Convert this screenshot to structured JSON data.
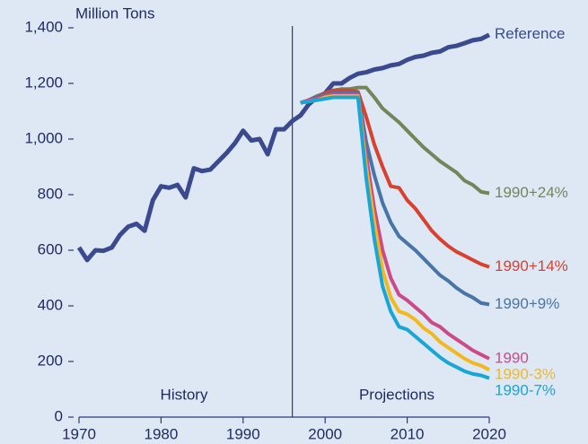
{
  "chart_data": {
    "type": "line",
    "y_axis_label": "Million Tons",
    "annotations": [
      "History",
      "Projections"
    ],
    "projection_start": 1996,
    "x": [
      1970,
      1971,
      1972,
      1973,
      1974,
      1975,
      1976,
      1977,
      1978,
      1979,
      1980,
      1981,
      1982,
      1983,
      1984,
      1985,
      1986,
      1987,
      1988,
      1989,
      1990,
      1991,
      1992,
      1993,
      1994,
      1995,
      1996,
      1997,
      1998,
      1999,
      2000,
      2001,
      2002,
      2003,
      2004,
      2005,
      2006,
      2007,
      2008,
      2009,
      2010,
      2011,
      2012,
      2013,
      2014,
      2015,
      2016,
      2017,
      2018,
      2019,
      2020
    ],
    "xlim": [
      1970,
      2020
    ],
    "xticks": [
      1970,
      1980,
      1990,
      2000,
      2010,
      2020
    ],
    "ylim": [
      0,
      1400
    ],
    "yticks": [
      0,
      200,
      400,
      600,
      800,
      {
        "value": 1000,
        "label": "1,000"
      },
      {
        "value": 1200,
        "label": "1,200"
      },
      {
        "value": 1400,
        "label": "1,400"
      }
    ],
    "series": [
      {
        "name": "Reference",
        "color": "#3b4a8f",
        "values": [
          610,
          565,
          600,
          598,
          610,
          655,
          685,
          695,
          670,
          780,
          830,
          825,
          835,
          790,
          895,
          885,
          890,
          920,
          950,
          985,
          1030,
          995,
          1000,
          945,
          1035,
          1035,
          1065,
          1085,
          1125,
          1150,
          1165,
          1200,
          1200,
          1220,
          1235,
          1240,
          1250,
          1255,
          1265,
          1270,
          1285,
          1295,
          1300,
          1310,
          1315,
          1330,
          1335,
          1345,
          1355,
          1360,
          1375
        ]
      },
      {
        "name": "1990+24%",
        "color": "#74855a",
        "values": [
          null,
          null,
          null,
          null,
          null,
          null,
          null,
          null,
          null,
          null,
          null,
          null,
          null,
          null,
          null,
          null,
          null,
          null,
          null,
          null,
          null,
          null,
          null,
          null,
          null,
          null,
          null,
          1130,
          1140,
          1155,
          1165,
          1175,
          1180,
          1180,
          1185,
          1185,
          1150,
          1110,
          1085,
          1060,
          1030,
          1000,
          970,
          945,
          920,
          900,
          880,
          850,
          835,
          810,
          805
        ]
      },
      {
        "name": "1990+14%",
        "color": "#d8402f",
        "values": [
          null,
          null,
          null,
          null,
          null,
          null,
          null,
          null,
          null,
          null,
          null,
          null,
          null,
          null,
          null,
          null,
          null,
          null,
          null,
          null,
          null,
          null,
          null,
          null,
          null,
          null,
          null,
          1130,
          1140,
          1150,
          1165,
          1175,
          1175,
          1175,
          1170,
          1080,
          980,
          900,
          830,
          825,
          780,
          750,
          710,
          670,
          640,
          615,
          595,
          580,
          565,
          550,
          540
        ]
      },
      {
        "name": "1990+9%",
        "color": "#4675a6",
        "values": [
          null,
          null,
          null,
          null,
          null,
          null,
          null,
          null,
          null,
          null,
          null,
          null,
          null,
          null,
          null,
          null,
          null,
          null,
          null,
          null,
          null,
          null,
          null,
          null,
          null,
          null,
          null,
          1130,
          1140,
          1150,
          1160,
          1165,
          1165,
          1165,
          1165,
          990,
          870,
          770,
          700,
          650,
          625,
          600,
          570,
          540,
          510,
          490,
          465,
          445,
          430,
          410,
          405
        ]
      },
      {
        "name": "1990",
        "color": "#cc4a88",
        "values": [
          null,
          null,
          null,
          null,
          null,
          null,
          null,
          null,
          null,
          null,
          null,
          null,
          null,
          null,
          null,
          null,
          null,
          null,
          null,
          null,
          null,
          null,
          null,
          null,
          null,
          null,
          null,
          1130,
          1140,
          1145,
          1155,
          1160,
          1160,
          1160,
          1160,
          940,
          750,
          600,
          500,
          440,
          420,
          395,
          370,
          340,
          325,
          300,
          280,
          260,
          240,
          225,
          210
        ]
      },
      {
        "name": "1990-3%",
        "color": "#f4b81e",
        "values": [
          null,
          null,
          null,
          null,
          null,
          null,
          null,
          null,
          null,
          null,
          null,
          null,
          null,
          null,
          null,
          null,
          null,
          null,
          null,
          null,
          null,
          null,
          null,
          null,
          null,
          null,
          null,
          1130,
          1135,
          1140,
          1150,
          1155,
          1155,
          1155,
          1155,
          900,
          700,
          530,
          430,
          380,
          370,
          350,
          320,
          300,
          270,
          250,
          230,
          210,
          195,
          185,
          170
        ]
      },
      {
        "name": "1990-7%",
        "color": "#17a6d6",
        "values": [
          null,
          null,
          null,
          null,
          null,
          null,
          null,
          null,
          null,
          null,
          null,
          null,
          null,
          null,
          null,
          null,
          null,
          null,
          null,
          null,
          null,
          null,
          null,
          null,
          null,
          null,
          null,
          1130,
          1135,
          1140,
          1145,
          1150,
          1150,
          1150,
          1150,
          860,
          640,
          470,
          380,
          325,
          315,
          290,
          265,
          240,
          215,
          195,
          180,
          165,
          155,
          150,
          140
        ]
      }
    ]
  }
}
